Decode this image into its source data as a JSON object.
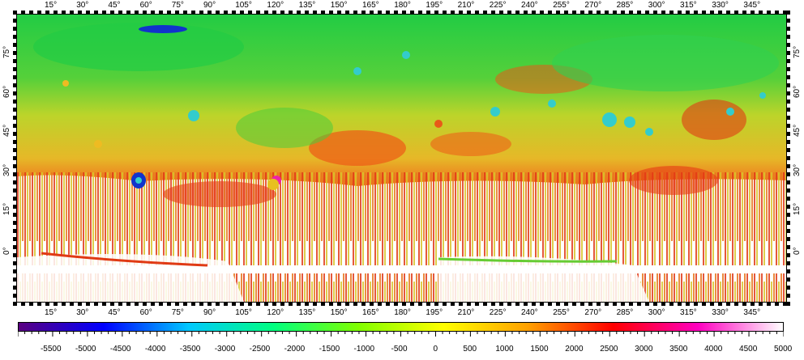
{
  "map": {
    "longitude_labels": [
      "15°",
      "30°",
      "45°",
      "60°",
      "75°",
      "90°",
      "105°",
      "120°",
      "135°",
      "150°",
      "165°",
      "180°",
      "195°",
      "210°",
      "225°",
      "240°",
      "255°",
      "270°",
      "285°",
      "300°",
      "315°",
      "330°",
      "345°"
    ],
    "latitude_labels": [
      "75°",
      "60°",
      "45°",
      "30°",
      "15°",
      "0°"
    ],
    "colors": {
      "low_plains": "#22cc44",
      "mid": "#ddd022",
      "high": "#ee4411",
      "crater_floor": "#33cccc",
      "deep": "#1133cc",
      "peak": "#ee22aa"
    }
  },
  "colorbar": {
    "labels": [
      "-5500",
      "-5000",
      "-4500",
      "-4000",
      "-3500",
      "-3000",
      "-2500",
      "-2000",
      "-1500",
      "-1000",
      "-500",
      "0",
      "500",
      "1000",
      "1500",
      "2000",
      "2500",
      "3000",
      "3500",
      "4000",
      "4500",
      "5000"
    ],
    "min": -6000,
    "max": 5000,
    "colors": [
      "#5a0080",
      "#0000ff",
      "#00c8ff",
      "#00ff80",
      "#80ff00",
      "#ffff00",
      "#ffa000",
      "#ff0000",
      "#ff00c0",
      "#ffffff"
    ]
  }
}
